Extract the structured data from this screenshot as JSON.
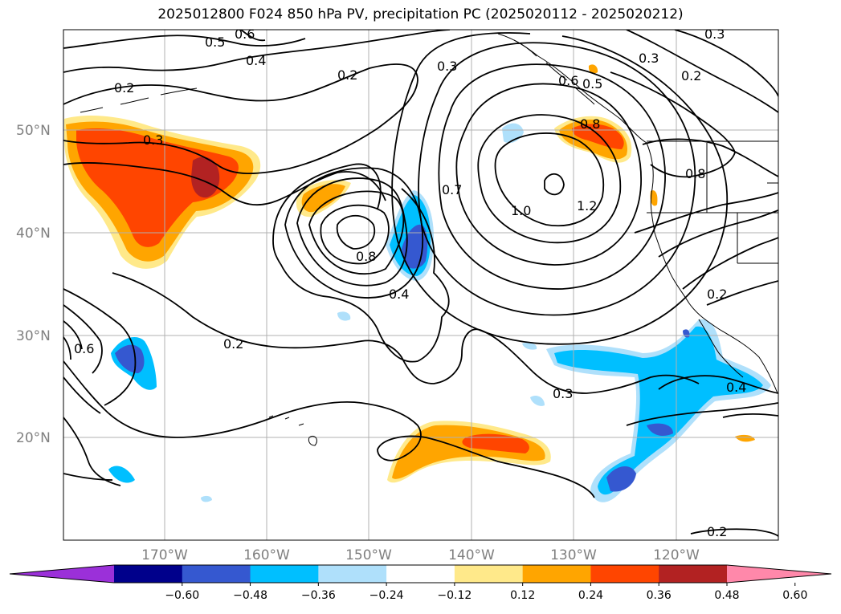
{
  "title": "2025012800 F024 850 hPa PV, precipitation PC (2025020112 - 2025020212)",
  "latitude_ticks": [
    "50°N",
    "40°N",
    "30°N",
    "20°N"
  ],
  "longitude_ticks": [
    "170°W",
    "160°W",
    "150°W",
    "140°W",
    "130°W",
    "120°W"
  ],
  "colorbar": {
    "ticks": [
      "−0.60",
      "−0.48",
      "−0.36",
      "−0.24",
      "−0.12",
      "0.12",
      "0.24",
      "0.36",
      "0.48",
      "0.60"
    ],
    "colors": [
      "#9b30d9",
      "#00008b",
      "#3558d0",
      "#00bfff",
      "#afe0fb",
      "#ffffff",
      "#ffe98a",
      "#ffa500",
      "#ff4500",
      "#b22222",
      "#ff88aa"
    ]
  },
  "contour_labels": [
    "0.5",
    "0.6",
    "0.4",
    "0.2",
    "0.3",
    "0.3",
    "0.2",
    "0.5",
    "0.3",
    "0.2",
    "0.6",
    "0.8",
    "0.7",
    "1.0",
    "1.2",
    "0.2",
    "0.4",
    "0.3",
    "0.2",
    "0.3",
    "0.6",
    "0.8",
    "0.4",
    "0.2",
    "0.8"
  ],
  "colors": {
    "grid": "#b0b0b0",
    "contour": "#000000",
    "coast": "#000000"
  }
}
